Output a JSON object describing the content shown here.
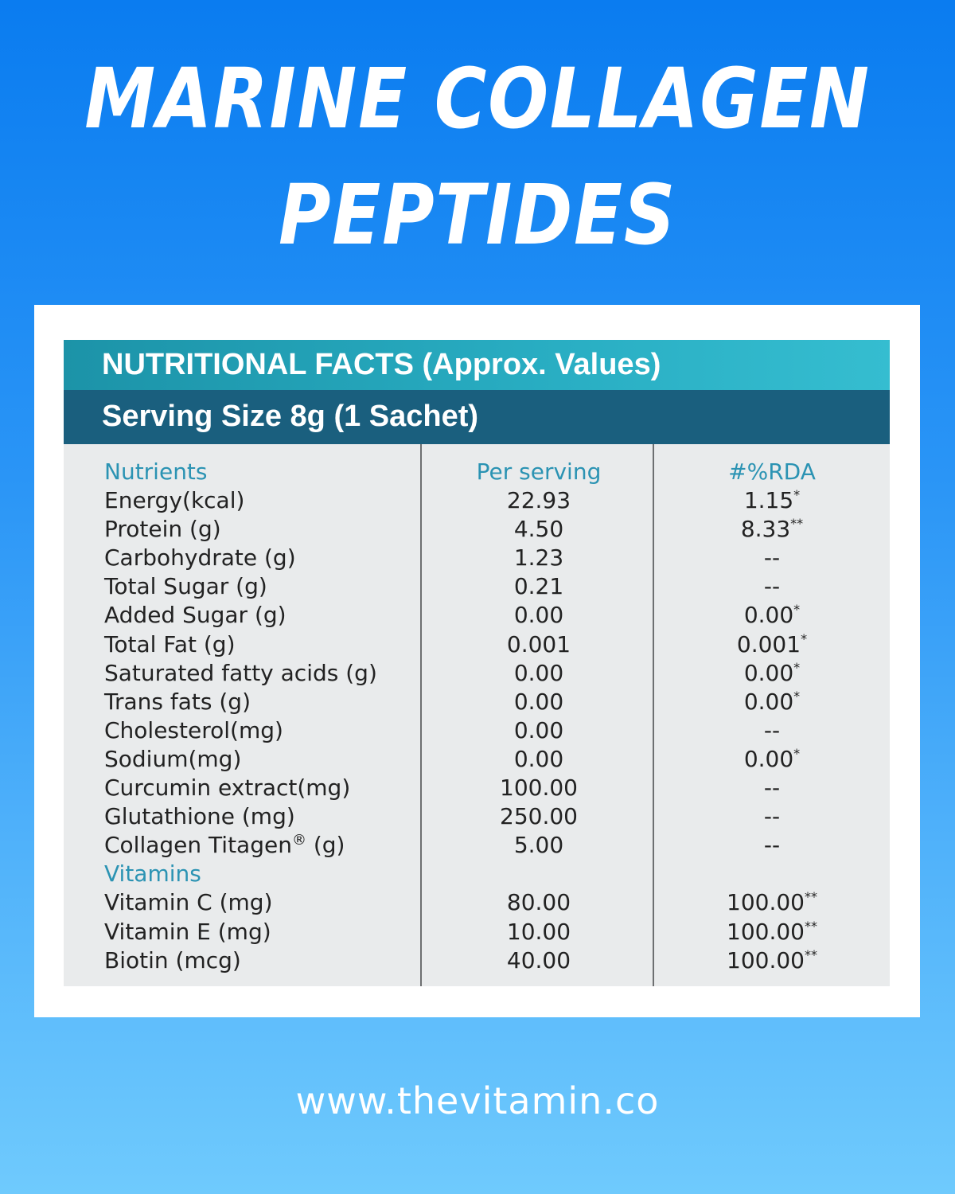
{
  "title_line1": "MARINE COLLAGEN",
  "title_line2": "PEPTIDES",
  "label": {
    "header": "NUTRITIONAL FACTS (Approx. Values)",
    "serving": "Serving Size 8g (1 Sachet)",
    "columns": [
      "Nutrients",
      "Per serving",
      "#%RDA"
    ],
    "rows": [
      {
        "name": "Energy(kcal)",
        "value": "22.93",
        "rda": "1.15",
        "mark": "*"
      },
      {
        "name": "Protein (g)",
        "value": "4.50",
        "rda": "8.33",
        "mark": "**"
      },
      {
        "name": "Carbohydrate (g)",
        "value": "1.23",
        "rda": "--",
        "mark": ""
      },
      {
        "name": "Total Sugar (g)",
        "value": "0.21",
        "rda": "--",
        "mark": ""
      },
      {
        "name": "Added Sugar (g)",
        "value": "0.00",
        "rda": "0.00",
        "mark": "*"
      },
      {
        "name": "Total Fat (g)",
        "value": "0.001",
        "rda": "0.001",
        "mark": "*"
      },
      {
        "name": "Saturated fatty acids (g)",
        "value": "0.00",
        "rda": "0.00",
        "mark": "*"
      },
      {
        "name": "Trans fats (g)",
        "value": "0.00",
        "rda": "0.00",
        "mark": "*"
      },
      {
        "name": "Cholesterol(mg)",
        "value": "0.00",
        "rda": "--",
        "mark": ""
      },
      {
        "name": "Sodium(mg)",
        "value": "0.00",
        "rda": "0.00",
        "mark": "*"
      },
      {
        "name": "Curcumin extract(mg)",
        "value": "100.00",
        "rda": "--",
        "mark": ""
      },
      {
        "name": "Glutathione (mg)",
        "value": "250.00",
        "rda": "--",
        "mark": ""
      },
      {
        "name": "Collagen Titagen",
        "name_mark": "®",
        "name_suffix": " (g)",
        "value": "5.00",
        "rda": "--",
        "mark": ""
      }
    ],
    "section": "Vitamins",
    "vitamins": [
      {
        "name": "Vitamin C (mg)",
        "value": "80.00",
        "rda": "100.00",
        "mark": "**"
      },
      {
        "name": "Vitamin E (mg)",
        "value": "10.00",
        "rda": "100.00",
        "mark": "**"
      },
      {
        "name": "Biotin (mcg)",
        "value": "40.00",
        "rda": "100.00",
        "mark": "**"
      }
    ]
  },
  "footer_url": "www.thevitamin.co",
  "colors": {
    "background_top": "#0a7cf0",
    "background_bottom": "#6fcafd",
    "header_teal": "#29aec3",
    "header_navy": "#1a5f7e",
    "accent_text": "#2b93b3"
  }
}
